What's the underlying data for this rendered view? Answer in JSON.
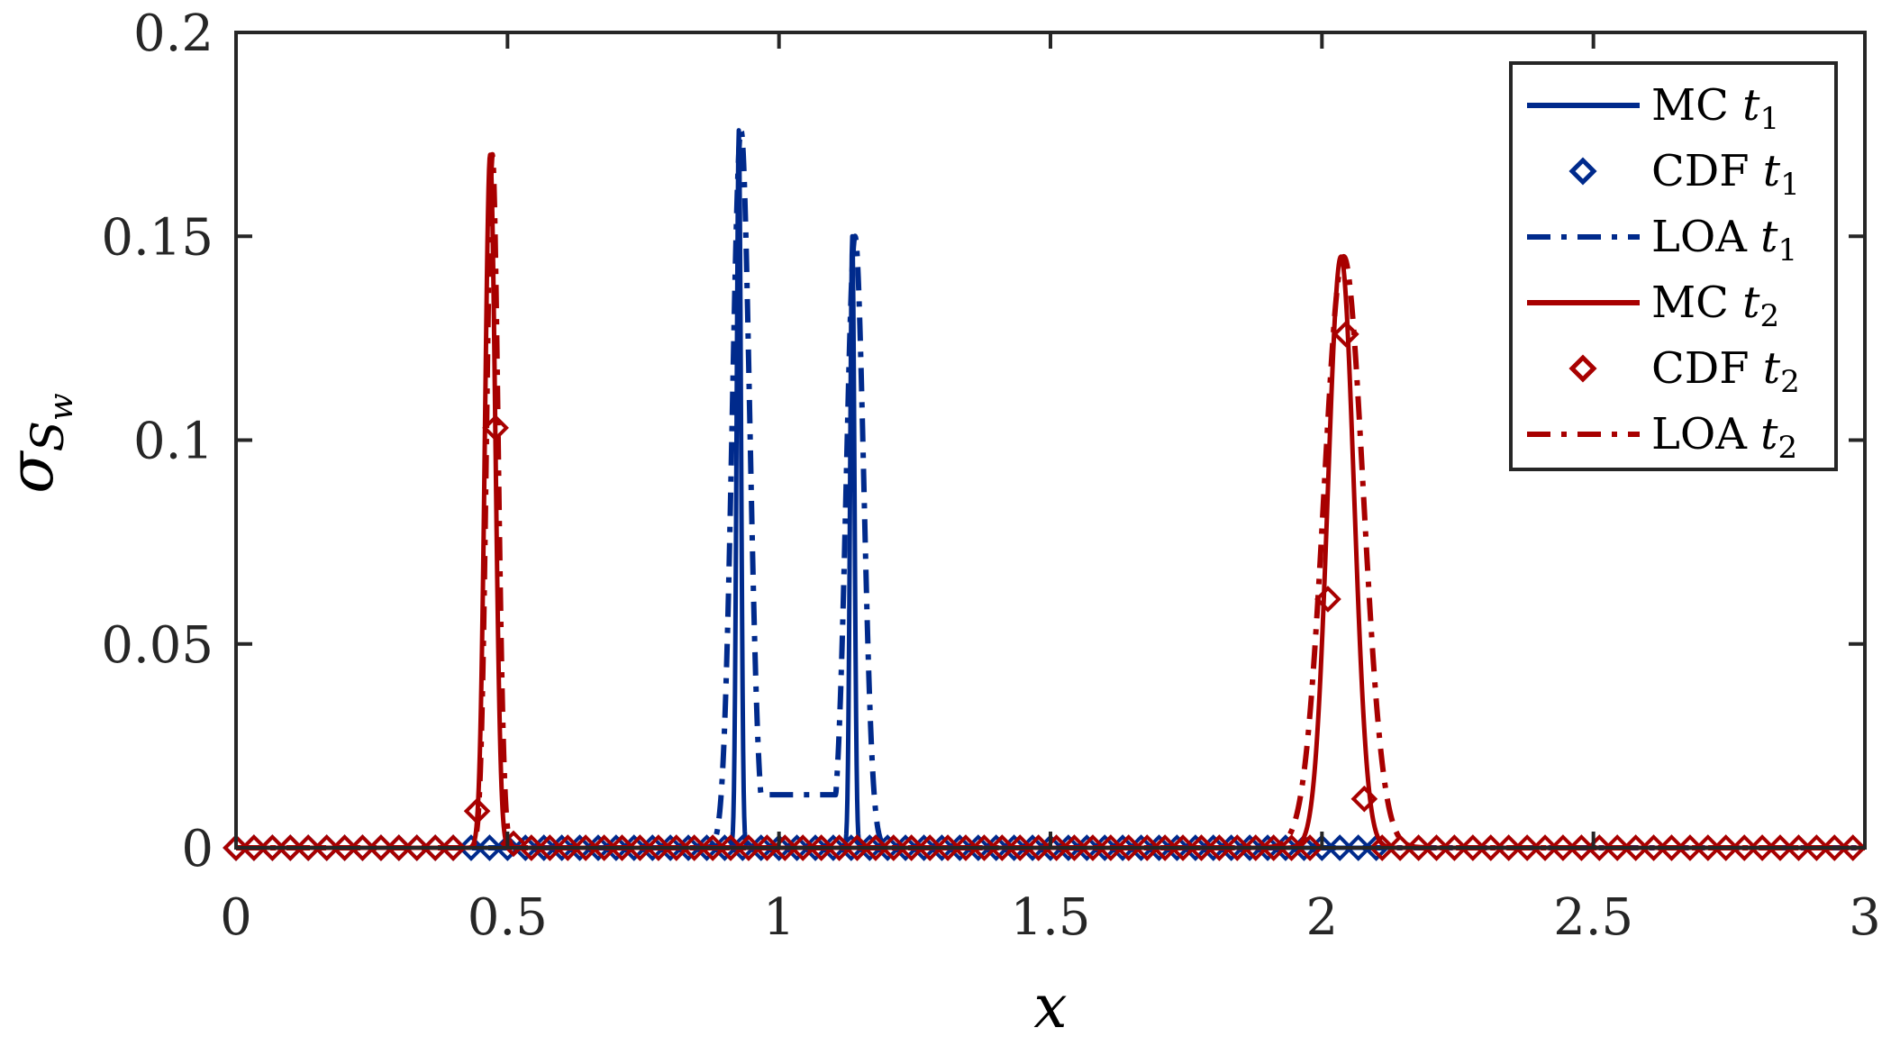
{
  "chart_data": {
    "type": "line",
    "xlabel": "x",
    "ylabel": "σ",
    "ylabel_sub": "S",
    "ylabel_subsub": "w",
    "xlim": [
      0,
      3
    ],
    "ylim": [
      0,
      0.2
    ],
    "x_ticks": [
      0,
      0.5,
      1,
      1.5,
      2,
      2.5,
      3
    ],
    "x_tick_labels": [
      "0",
      "0.5",
      "1",
      "1.5",
      "2",
      "2.5",
      "3"
    ],
    "y_ticks": [
      0,
      0.05,
      0.1,
      0.15,
      0.2
    ],
    "y_tick_labels": [
      "0",
      "0.05",
      "0.1",
      "0.15",
      "0.2"
    ],
    "grid": false,
    "legend_position": "top-right",
    "colors": {
      "t1": "#002a8c",
      "t2": "#a80000",
      "axes": "#262626"
    },
    "series": [
      {
        "name": "MC",
        "sub": "1",
        "style": "solid",
        "color": "#002a8c",
        "peaks": [
          {
            "center": 0.926,
            "height": 0.176,
            "width": 0.004
          },
          {
            "center": 1.135,
            "height": 0.15,
            "width": 0.004
          }
        ]
      },
      {
        "name": "CDF",
        "sub": "1",
        "style": "diamond",
        "color": "#002a8c",
        "x": [
          0.0,
          0.033,
          0.067,
          0.1,
          0.133,
          0.167,
          0.2,
          0.233,
          0.267,
          0.3,
          0.333,
          0.367,
          0.4,
          0.433,
          0.467,
          0.5,
          0.533,
          0.567,
          0.6,
          0.633,
          0.667,
          0.7,
          0.733,
          0.767,
          0.8,
          0.833,
          0.867,
          0.9,
          0.933,
          0.967,
          1.0,
          1.033,
          1.067,
          1.1,
          1.133,
          1.167,
          1.2,
          1.233,
          1.267,
          1.3,
          1.333,
          1.367,
          1.4,
          1.433,
          1.467,
          1.5,
          1.533,
          1.567,
          1.6,
          1.633,
          1.667,
          1.7,
          1.733,
          1.767,
          1.8,
          1.833,
          1.867,
          1.9,
          1.933,
          1.967,
          2.0,
          2.033,
          2.067,
          2.1
        ],
        "y": [
          0,
          0,
          0,
          0,
          0,
          0,
          0,
          0,
          0,
          0,
          0,
          0,
          0,
          0,
          0,
          0,
          0,
          0,
          0,
          0,
          0,
          0,
          0,
          0,
          0,
          0,
          0,
          0,
          0,
          0,
          0,
          0,
          0,
          0,
          0,
          0,
          0,
          0,
          0,
          0,
          0,
          0,
          0,
          0,
          0,
          0,
          0,
          0,
          0,
          0,
          0,
          0,
          0,
          0,
          0,
          0,
          0,
          0,
          0,
          0,
          0,
          0,
          0,
          0
        ]
      },
      {
        "name": "LOA",
        "sub": "1",
        "style": "dashdot",
        "color": "#002a8c",
        "peaks": [
          {
            "center": 0.93,
            "height": 0.176,
            "width": 0.016
          },
          {
            "center": 1.14,
            "height": 0.15,
            "width": 0.016
          }
        ],
        "plateau": 0.013,
        "plateau_range": [
          0.95,
          1.12
        ]
      },
      {
        "name": "MC",
        "sub": "2",
        "style": "solid",
        "color": "#a80000",
        "peaks": [
          {
            "center": 0.468,
            "height": 0.17,
            "width": 0.0095
          },
          {
            "center": 2.035,
            "height": 0.145,
            "width": 0.024
          }
        ]
      },
      {
        "name": "CDF",
        "sub": "2",
        "style": "diamond",
        "color": "#a80000",
        "x": [
          0.0,
          0.033,
          0.067,
          0.1,
          0.133,
          0.167,
          0.2,
          0.233,
          0.267,
          0.3,
          0.333,
          0.367,
          0.4,
          0.444,
          0.478,
          0.511,
          0.544,
          0.578,
          0.611,
          0.644,
          0.678,
          0.711,
          0.744,
          0.778,
          0.811,
          0.844,
          0.878,
          0.911,
          0.944,
          0.978,
          1.011,
          1.044,
          1.078,
          1.111,
          1.144,
          1.178,
          1.211,
          1.244,
          1.278,
          1.311,
          1.344,
          1.378,
          1.411,
          1.444,
          1.478,
          1.511,
          1.544,
          1.578,
          1.611,
          1.644,
          1.678,
          1.711,
          1.744,
          1.778,
          1.811,
          1.844,
          1.878,
          1.911,
          1.944,
          1.978,
          2.011,
          2.044,
          2.078,
          2.111,
          2.144,
          2.178,
          2.211,
          2.244,
          2.278,
          2.311,
          2.344,
          2.378,
          2.411,
          2.444,
          2.478,
          2.511,
          2.544,
          2.578,
          2.611,
          2.644,
          2.678,
          2.711,
          2.744,
          2.778,
          2.811,
          2.844,
          2.878,
          2.911,
          2.944,
          2.978
        ],
        "y": [
          0,
          0,
          0,
          0,
          0,
          0,
          0,
          0,
          0,
          0,
          0,
          0,
          0,
          0.009,
          0.103,
          0.001,
          0,
          0,
          0,
          0,
          0,
          0,
          0,
          0,
          0,
          0,
          0,
          0,
          0,
          0,
          0,
          0,
          0,
          0,
          0,
          0,
          0,
          0,
          0,
          0,
          0,
          0,
          0,
          0,
          0,
          0,
          0,
          0,
          0,
          0,
          0,
          0,
          0,
          0,
          0,
          0,
          0,
          0,
          0,
          0,
          0.061,
          0.126,
          0.012,
          0,
          0,
          0,
          0,
          0,
          0,
          0,
          0,
          0,
          0,
          0,
          0,
          0,
          0,
          0,
          0,
          0,
          0,
          0,
          0,
          0,
          0,
          0,
          0,
          0,
          0,
          0
        ]
      },
      {
        "name": "LOA",
        "sub": "2",
        "style": "dashdot",
        "color": "#a80000",
        "peaks": [
          {
            "center": 0.472,
            "height": 0.17,
            "width": 0.0105
          },
          {
            "center": 2.04,
            "height": 0.145,
            "width": 0.036
          }
        ]
      }
    ]
  }
}
